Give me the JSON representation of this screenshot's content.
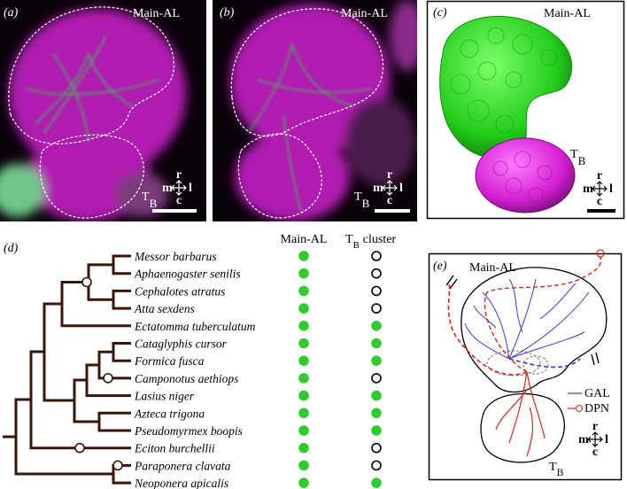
{
  "panel_a": {
    "label": "(a)",
    "region_main": "Main-AL",
    "region_tb": {
      "base": "T",
      "sub": "B"
    }
  },
  "panel_b": {
    "label": "(b)",
    "region_main": "Main-AL",
    "region_tb": {
      "base": "T",
      "sub": "B"
    }
  },
  "panel_c": {
    "label": "(c)",
    "region_main": "Main-AL",
    "region_tb": {
      "base": "T",
      "sub": "B"
    }
  },
  "panel_d": {
    "label": "(d)",
    "column_main": "Main-AL",
    "column_tb": {
      "base": "T",
      "sub": "B",
      "suffix": "cluster"
    },
    "species": [
      {
        "name": "Messor barbarus",
        "main_al": true,
        "tb_cluster": false
      },
      {
        "name": "Aphaenogaster senilis",
        "main_al": true,
        "tb_cluster": false
      },
      {
        "name": "Cephalotes atratus",
        "main_al": true,
        "tb_cluster": false
      },
      {
        "name": "Atta sexdens",
        "main_al": true,
        "tb_cluster": false
      },
      {
        "name": "Ectatomma tuberculatum",
        "main_al": true,
        "tb_cluster": true
      },
      {
        "name": "Cataglyphis cursor",
        "main_al": true,
        "tb_cluster": true
      },
      {
        "name": "Formica fusca",
        "main_al": true,
        "tb_cluster": true
      },
      {
        "name": "Camponotus aethiops",
        "main_al": true,
        "tb_cluster": false
      },
      {
        "name": "Lasius niger",
        "main_al": true,
        "tb_cluster": true
      },
      {
        "name": "Azteca trigona",
        "main_al": true,
        "tb_cluster": true
      },
      {
        "name": "Pseudomyrmex boopis",
        "main_al": true,
        "tb_cluster": true
      },
      {
        "name": "Eciton burchellii",
        "main_al": true,
        "tb_cluster": false
      },
      {
        "name": "Paraponera clavata",
        "main_al": true,
        "tb_cluster": false
      },
      {
        "name": "Neoponera apicalis",
        "main_al": true,
        "tb_cluster": true
      }
    ]
  },
  "panel_e": {
    "label": "(e)",
    "region_main": "Main-AL",
    "region_tb": {
      "base": "T",
      "sub": "B"
    },
    "legend": [
      {
        "name": "GAL",
        "color": "#3c3cd0"
      },
      {
        "name": "DPN",
        "color": "#d42a1e"
      }
    ]
  },
  "compass": {
    "up": "r",
    "left": "m",
    "right": "l",
    "down": "c"
  }
}
